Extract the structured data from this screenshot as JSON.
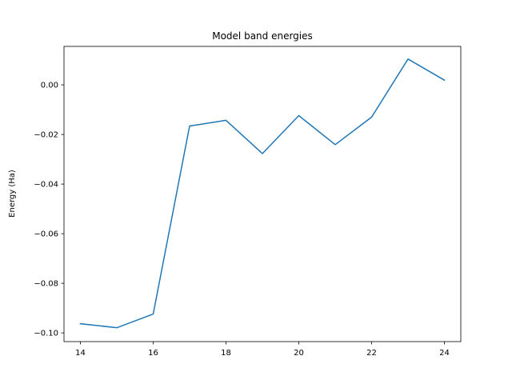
{
  "chart_data": {
    "type": "line",
    "title": "Model band energies",
    "xlabel": "",
    "ylabel": "Energy (Ha)",
    "xlim": [
      13.55,
      24.45
    ],
    "ylim": [
      -0.1035,
      0.0155
    ],
    "xticks": [
      14,
      16,
      18,
      20,
      22,
      24
    ],
    "yticks": [
      -0.1,
      -0.08,
      -0.06,
      -0.04,
      -0.02,
      0.0
    ],
    "ytick_labels": [
      "−0.10",
      "−0.08",
      "−0.06",
      "−0.04",
      "−0.02",
      "0.00"
    ],
    "grid": false,
    "series": [
      {
        "color": "#1f77b4",
        "x": [
          14,
          15,
          16,
          17,
          18,
          19,
          20,
          21,
          22,
          23,
          24
        ],
        "y": [
          -0.0963,
          -0.0979,
          -0.0924,
          -0.0166,
          -0.0143,
          -0.0277,
          -0.0124,
          -0.0241,
          -0.013,
          0.0104,
          0.0019
        ]
      }
    ]
  }
}
